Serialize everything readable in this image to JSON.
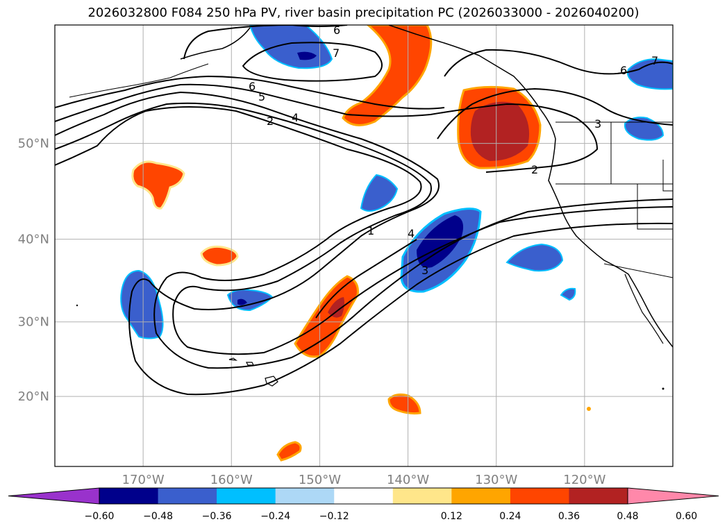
{
  "title": "2026032800 F084 250 hPa PV, river basin precipitation PC (2026033000 - 2026040200)",
  "map": {
    "lat_labels": [
      {
        "lat": 50,
        "text": "50°N"
      },
      {
        "lat": 40,
        "text": "40°N"
      },
      {
        "lat": 30,
        "text": "30°N"
      },
      {
        "lat": 20,
        "text": "20°N"
      }
    ],
    "lon_labels": [
      {
        "lon": -170,
        "text": "170°W"
      },
      {
        "lon": -160,
        "text": "160°W"
      },
      {
        "lon": -150,
        "text": "150°W"
      },
      {
        "lon": -140,
        "text": "140°W"
      },
      {
        "lon": -130,
        "text": "130°W"
      },
      {
        "lon": -120,
        "text": "120°W"
      }
    ],
    "extent": {
      "lon_min": -180,
      "lon_max": -110,
      "lat_min": 10,
      "lat_max": 60
    },
    "pv_contour_labels": [
      "1",
      "2",
      "3",
      "4",
      "5",
      "6",
      "7"
    ]
  },
  "colorbar": {
    "ticks": [
      "−0.60",
      "−0.48",
      "−0.36",
      "−0.24",
      "−0.12",
      "0.12",
      "0.24",
      "0.36",
      "0.48",
      "0.60"
    ],
    "colors": [
      "#9932CC",
      "#00008B",
      "#3A5FCD",
      "#00BFFF",
      "#ADD8F6",
      "#FFFFFF",
      "#FFE68A",
      "#FFA500",
      "#FF4500",
      "#B22222",
      "#FF88AA"
    ]
  }
}
